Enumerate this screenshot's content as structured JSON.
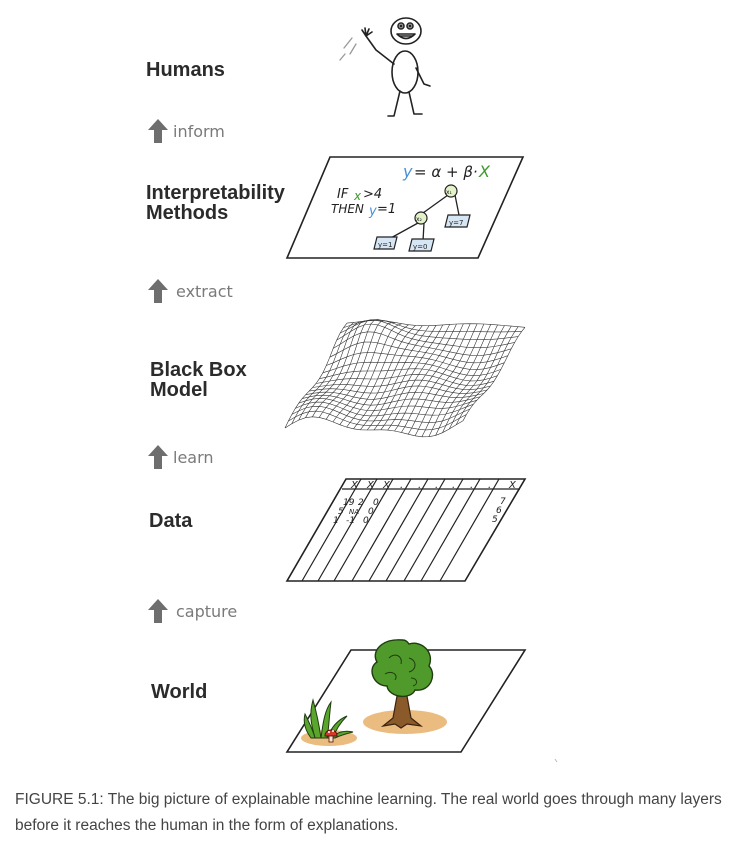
{
  "layers": {
    "humans": "Humans",
    "methods_line1": "Interpretability",
    "methods_line2": "Methods",
    "model_line1": "Black Box",
    "model_line2": "Model",
    "data": "Data",
    "world": "World"
  },
  "arrows": {
    "inform": "inform",
    "extract": "extract",
    "learn": "learn",
    "capture": "capture"
  },
  "method_sheet": {
    "formula_y": "y",
    "formula_rest": "= α + β·",
    "formula_x": "X",
    "rule_if": "IF",
    "rule_x": "x",
    "rule_cond": ">4",
    "rule_then": "THEN",
    "rule_y": "y",
    "rule_val": "=1",
    "node_x1": "x₁",
    "node_x2": "x₂",
    "leaf_a": "y=1",
    "leaf_b": "y=0",
    "leaf_c": "y=7"
  },
  "data_sheet": {
    "headers": [
      "X",
      "X",
      "X",
      ".",
      ".",
      ".",
      ".",
      ".",
      ".",
      "X"
    ],
    "col1": [
      "19",
      "5",
      "1"
    ],
    "col2": [
      "2",
      "NA",
      "-1"
    ],
    "col3": [
      "0",
      "0",
      "0"
    ],
    "last_col": [
      "7",
      "6",
      "5"
    ]
  },
  "caption": "FIGURE 5.1: The big picture of explainable machine learning. The real world goes through many layers before it reaches the human in the form of explanations.",
  "colors": {
    "label": "#2b2b2b",
    "arrow": "#6e6e6e",
    "caption": "#444444",
    "blue": "#4a90d9",
    "green": "#3a9a2a"
  }
}
